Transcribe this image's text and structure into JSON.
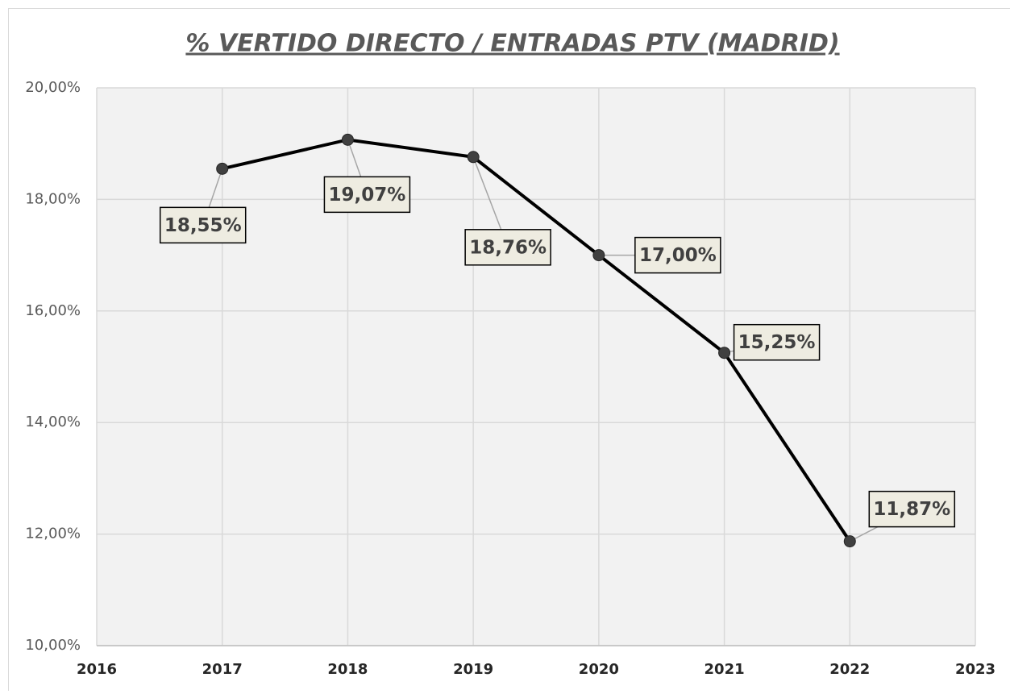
{
  "chart_data": {
    "type": "line",
    "title": "% VERTIDO DIRECTO / ENTRADAS PTV (MADRID)",
    "x": [
      2017,
      2018,
      2019,
      2020,
      2021,
      2022
    ],
    "series": [
      {
        "color": "#000000",
        "values": [
          18.55,
          19.07,
          18.76,
          17.0,
          15.25,
          11.87
        ],
        "value_labels": [
          "18,55%",
          "19,07%",
          "18,76%",
          "17,00%",
          "15,25%",
          "11,87%"
        ]
      }
    ],
    "xlim": [
      2016,
      2023
    ],
    "xticks": [
      2016,
      2017,
      2018,
      2019,
      2020,
      2021,
      2022,
      2023
    ],
    "ylim": [
      10,
      20
    ],
    "yticks": [
      {
        "value": 10,
        "label": "10,00%"
      },
      {
        "value": 12,
        "label": "12,00%"
      },
      {
        "value": 14,
        "label": "14,00%"
      },
      {
        "value": 16,
        "label": "16,00%"
      },
      {
        "value": 18,
        "label": "18,00%"
      },
      {
        "value": 20,
        "label": "20,00%"
      }
    ],
    "grid": true
  }
}
